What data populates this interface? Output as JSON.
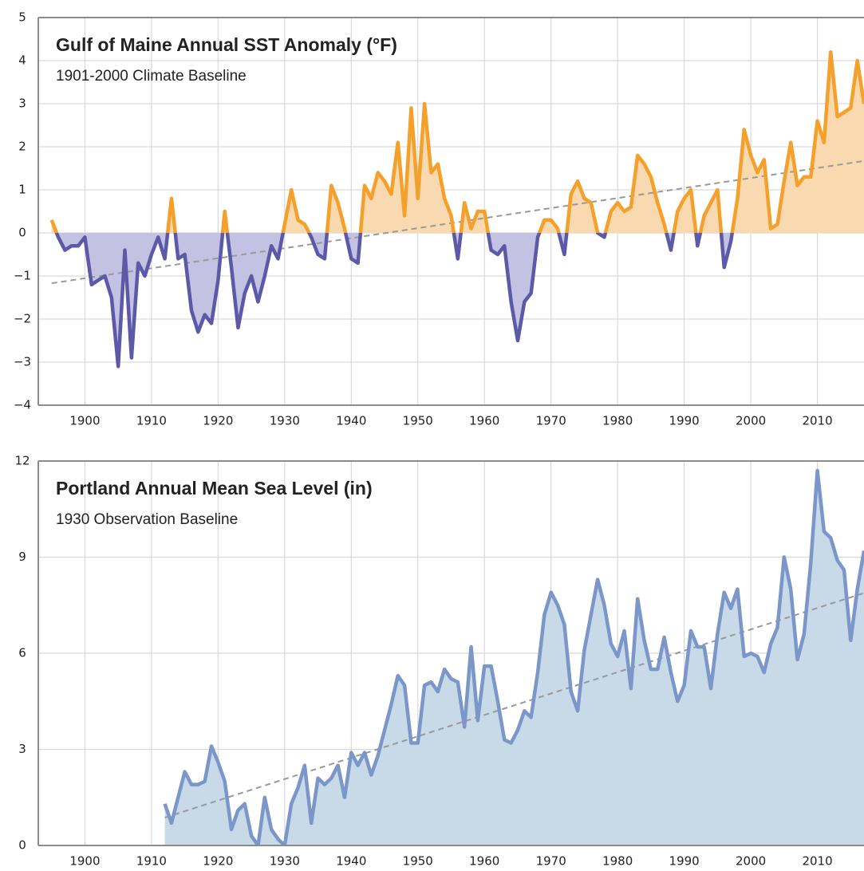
{
  "chart_data": [
    {
      "type": "area",
      "title": "Gulf of Maine Annual SST Anomaly (°F)",
      "subtitle": "1901-2000 Climate Baseline",
      "x": [
        1895,
        1896,
        1897,
        1898,
        1899,
        1900,
        1901,
        1902,
        1903,
        1904,
        1905,
        1906,
        1907,
        1908,
        1909,
        1910,
        1911,
        1912,
        1913,
        1914,
        1915,
        1916,
        1917,
        1918,
        1919,
        1920,
        1921,
        1922,
        1923,
        1924,
        1925,
        1926,
        1927,
        1928,
        1929,
        1930,
        1931,
        1932,
        1933,
        1934,
        1935,
        1936,
        1937,
        1938,
        1939,
        1940,
        1941,
        1942,
        1943,
        1944,
        1945,
        1946,
        1947,
        1948,
        1949,
        1950,
        1951,
        1952,
        1953,
        1954,
        1955,
        1956,
        1957,
        1958,
        1959,
        1960,
        1961,
        1962,
        1963,
        1964,
        1965,
        1966,
        1967,
        1968,
        1969,
        1970,
        1971,
        1972,
        1973,
        1974,
        1975,
        1976,
        1977,
        1978,
        1979,
        1980,
        1981,
        1982,
        1983,
        1984,
        1985,
        1986,
        1987,
        1988,
        1989,
        1990,
        1991,
        1992,
        1993,
        1994,
        1995,
        1996,
        1997,
        1998,
        1999,
        2000,
        2001,
        2002,
        2003,
        2004,
        2005,
        2006,
        2007,
        2008,
        2009,
        2010,
        2011,
        2012,
        2013,
        2014,
        2015,
        2016,
        2017
      ],
      "values": [
        0.3,
        -0.1,
        -0.4,
        -0.3,
        -0.3,
        -0.1,
        -1.2,
        -1.1,
        -1.0,
        -1.5,
        -3.1,
        -0.4,
        -2.9,
        -0.7,
        -1.0,
        -0.5,
        -0.1,
        -0.6,
        0.8,
        -0.6,
        -0.5,
        -1.8,
        -2.3,
        -1.9,
        -2.1,
        -1.1,
        0.5,
        -0.8,
        -2.2,
        -1.4,
        -1.0,
        -1.6,
        -1.0,
        -0.3,
        -0.6,
        0.2,
        1.0,
        0.3,
        0.2,
        -0.1,
        -0.5,
        -0.6,
        1.1,
        0.7,
        0.1,
        -0.6,
        -0.7,
        1.1,
        0.8,
        1.4,
        1.2,
        0.9,
        2.1,
        0.4,
        2.9,
        0.8,
        3.0,
        1.4,
        1.6,
        0.8,
        0.4,
        -0.6,
        0.7,
        0.1,
        0.5,
        0.5,
        -0.4,
        -0.5,
        -0.3,
        -1.6,
        -2.5,
        -1.6,
        -1.4,
        -0.1,
        0.3,
        0.3,
        0.1,
        -0.5,
        0.9,
        1.2,
        0.8,
        0.7,
        0.0,
        -0.1,
        0.5,
        0.7,
        0.5,
        0.6,
        1.8,
        1.6,
        1.3,
        0.7,
        0.2,
        -0.4,
        0.5,
        0.8,
        1.0,
        -0.3,
        0.4,
        0.7,
        1.0,
        -0.8,
        -0.2,
        0.8,
        2.4,
        1.8,
        1.4,
        1.7,
        0.1,
        0.2,
        1.2,
        2.1,
        1.1,
        1.3,
        1.3,
        2.6,
        2.1,
        4.2,
        2.7,
        2.8,
        2.9,
        4.0,
        3.0
      ],
      "color_above": "#f5a02a",
      "color_below": "#5b59a8",
      "fill_above": "#f9d9b0",
      "fill_below": "#c3c2e2",
      "trend": {
        "x": [
          1895,
          2017
        ],
        "values": [
          -1.17,
          1.67
        ],
        "color": "#999999"
      },
      "xlim": [
        1893,
        2017
      ],
      "ylim": [
        -4,
        5
      ],
      "xticks": [
        1900,
        1910,
        1920,
        1930,
        1940,
        1950,
        1960,
        1970,
        1980,
        1990,
        2000,
        2010
      ],
      "yticks": [
        {
          "value": -4,
          "label": "−4"
        },
        {
          "value": -3,
          "label": "−3"
        },
        {
          "value": -2,
          "label": "−2"
        },
        {
          "value": -1,
          "label": "−1"
        },
        0,
        1,
        2,
        3,
        4,
        5
      ],
      "grid": true
    },
    {
      "type": "area",
      "title": "Portland Annual Mean Sea Level (in)",
      "subtitle": "1930 Observation Baseline",
      "x": [
        1912,
        1913,
        1914,
        1915,
        1916,
        1917,
        1918,
        1919,
        1920,
        1921,
        1922,
        1923,
        1924,
        1925,
        1926,
        1927,
        1928,
        1929,
        1930,
        1931,
        1932,
        1933,
        1934,
        1935,
        1936,
        1937,
        1938,
        1939,
        1940,
        1941,
        1942,
        1943,
        1944,
        1945,
        1946,
        1947,
        1948,
        1949,
        1950,
        1951,
        1952,
        1953,
        1954,
        1955,
        1956,
        1957,
        1958,
        1959,
        1960,
        1961,
        1962,
        1963,
        1964,
        1965,
        1966,
        1967,
        1968,
        1969,
        1970,
        1971,
        1972,
        1973,
        1974,
        1975,
        1976,
        1977,
        1978,
        1979,
        1980,
        1981,
        1982,
        1983,
        1984,
        1985,
        1986,
        1987,
        1988,
        1989,
        1990,
        1991,
        1992,
        1993,
        1994,
        1995,
        1996,
        1997,
        1998,
        1999,
        2000,
        2001,
        2002,
        2003,
        2004,
        2005,
        2006,
        2007,
        2008,
        2009,
        2010,
        2011,
        2012,
        2013,
        2014,
        2015,
        2016,
        2017
      ],
      "values": [
        1.3,
        0.7,
        1.5,
        2.3,
        1.9,
        1.9,
        2.0,
        3.1,
        2.6,
        2.0,
        0.5,
        1.1,
        1.3,
        0.3,
        0.0,
        1.5,
        0.5,
        0.2,
        0.0,
        1.3,
        1.8,
        2.5,
        0.7,
        2.1,
        1.9,
        2.1,
        2.5,
        1.5,
        2.9,
        2.5,
        2.9,
        2.2,
        2.8,
        3.6,
        4.4,
        5.3,
        5.0,
        3.2,
        3.2,
        5.0,
        5.1,
        4.8,
        5.5,
        5.2,
        5.1,
        3.7,
        6.2,
        3.9,
        5.6,
        5.6,
        4.5,
        3.3,
        3.2,
        3.6,
        4.2,
        4.0,
        5.4,
        7.2,
        7.9,
        7.5,
        6.9,
        4.8,
        4.2,
        6.1,
        7.2,
        8.3,
        7.5,
        6.3,
        5.9,
        6.7,
        4.9,
        7.7,
        6.4,
        5.5,
        5.5,
        6.5,
        5.4,
        4.5,
        5.0,
        6.7,
        6.2,
        6.2,
        4.9,
        6.6,
        7.9,
        7.4,
        8.0,
        5.9,
        6.0,
        5.9,
        5.4,
        6.3,
        6.8,
        9.0,
        8.0,
        5.8,
        6.6,
        8.8,
        11.7,
        9.8,
        9.6,
        8.9,
        8.6,
        6.4,
        8.0,
        9.2
      ],
      "color_above": "#7b97c9",
      "color_below": "#7b97c9",
      "fill_above": "#c8d9e8",
      "fill_below": "#c8d9e8",
      "trend": {
        "x": [
          1912,
          2017
        ],
        "values": [
          0.87,
          7.88
        ],
        "color": "#999999"
      },
      "xlim": [
        1893,
        2017
      ],
      "ylim": [
        0,
        12
      ],
      "xticks": [
        1900,
        1910,
        1920,
        1930,
        1940,
        1950,
        1960,
        1970,
        1980,
        1990,
        2000,
        2010
      ],
      "yticks": [
        0,
        3,
        6,
        9,
        12
      ],
      "grid": true
    }
  ]
}
